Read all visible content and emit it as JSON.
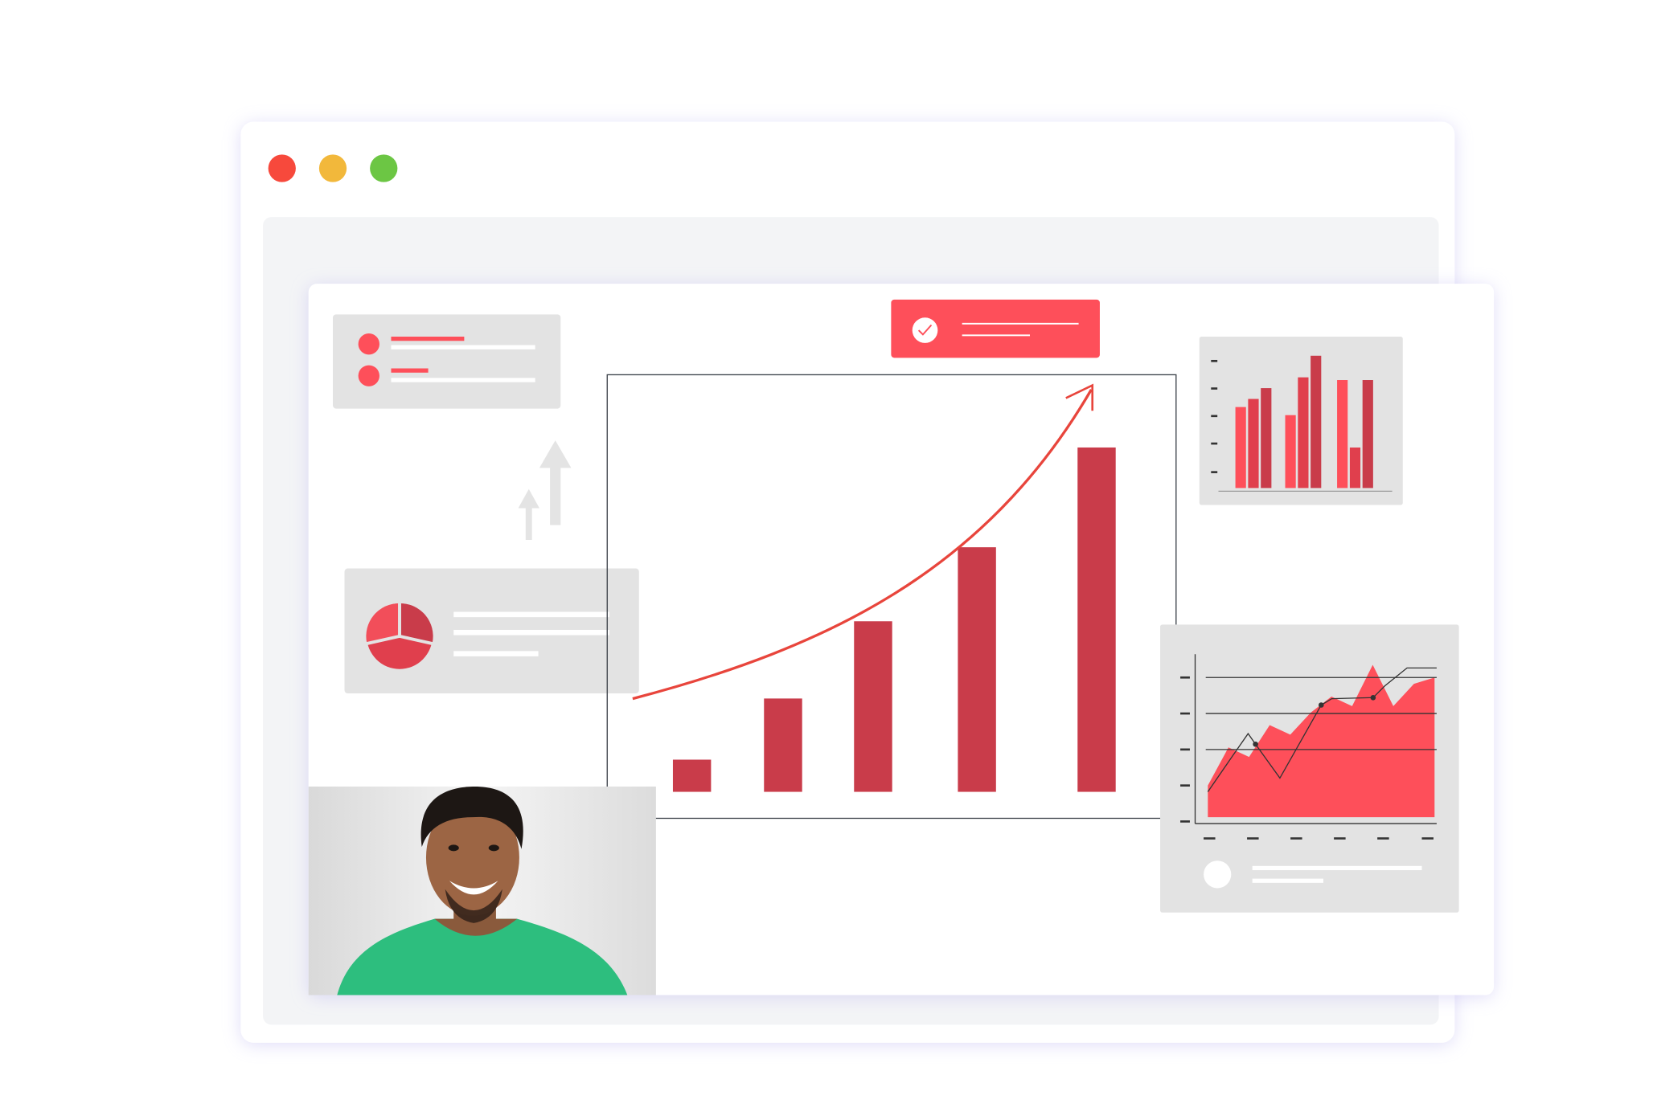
{
  "colors": {
    "close_dot": "#F7493C",
    "minimize_dot": "#F2B83B",
    "maximize_dot": "#6CC644",
    "accent_red": "#FE4F5A",
    "bar_red": "#C93C4A",
    "trend_line": "#E8453C",
    "card_gray": "#E3E3E3",
    "panel_gray": "#F3F4F6",
    "shirt_green": "#2DBE7E"
  },
  "icons": {
    "window_controls": [
      "close-dot",
      "minimize-dot",
      "maximize-dot"
    ],
    "status": "check-circle-icon",
    "growth": "up-arrow-icon"
  },
  "chart_data": [
    {
      "type": "bar",
      "values": [
        1,
        2.9,
        5.3,
        7.6,
        10.7
      ],
      "trend": "rising-curve-with-arrow"
    },
    {
      "type": "bar",
      "series": [
        {
          "values": [
            3.0,
            2.7,
            4.0
          ]
        },
        {
          "values": [
            3.3,
            4.1,
            1.5
          ]
        },
        {
          "values": [
            3.7,
            4.9,
            4.0
          ]
        }
      ]
    },
    {
      "type": "area",
      "values": [
        1,
        2.2,
        1.9,
        2.9,
        2.6,
        3.3,
        3.8,
        3.5,
        4.8,
        3.5,
        4.2,
        4.4
      ]
    },
    {
      "type": "pie",
      "values": [
        33,
        33,
        34
      ]
    }
  ]
}
